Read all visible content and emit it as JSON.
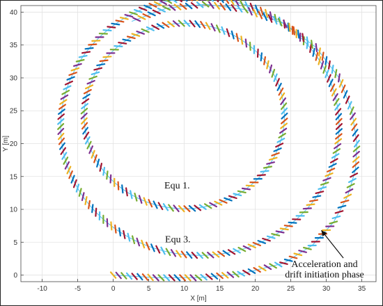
{
  "chart_data": {
    "type": "scatter",
    "xlabel": "X [m]",
    "ylabel": "Y [m]",
    "xlim": [
      -13,
      37
    ],
    "ylim": [
      -1,
      41
    ],
    "xticks": [
      -10,
      -5,
      0,
      5,
      10,
      15,
      20,
      25,
      30,
      35
    ],
    "yticks": [
      0,
      5,
      10,
      15,
      20,
      25,
      30,
      35,
      40
    ],
    "grid": true,
    "annotations": {
      "equ1": "Equ 1.",
      "equ3": "Equ 3.",
      "phase_line1": "Acceleration and",
      "phase_line2": "drift initiation phase"
    },
    "trajectories": [
      {
        "label": "Equ 1.",
        "shape": "circle",
        "center": [
          10,
          24.2
        ],
        "radius": 14.1
      },
      {
        "label": "Equ 3.",
        "shape": "circle",
        "center": [
          12.2,
          22.6
        ],
        "radius": 19.6
      },
      {
        "label": "Acceleration and drift initiation phase",
        "shape": "path",
        "points": [
          [
            0,
            0
          ],
          [
            6,
            -0.4
          ],
          [
            12,
            -0.4
          ],
          [
            18,
            0.2
          ],
          [
            24,
            1.8
          ],
          [
            28,
            4.5
          ],
          [
            31,
            8
          ],
          [
            33,
            12
          ],
          [
            34.1,
            16
          ],
          [
            34.3,
            20
          ],
          [
            33.6,
            25
          ],
          [
            31.8,
            30
          ],
          [
            28.6,
            34.6
          ],
          [
            24.2,
            38.2
          ],
          [
            18.6,
            40.4
          ],
          [
            13,
            41.2
          ],
          [
            7.5,
            40.6
          ],
          [
            2.6,
            38.6
          ]
        ]
      }
    ],
    "marker_colors": [
      "#0072BD",
      "#D95319",
      "#EDB120",
      "#7E2F8E",
      "#77AC30",
      "#4DBEEE",
      "#A2142F"
    ],
    "reference_line_color": "#4DBEEE"
  }
}
